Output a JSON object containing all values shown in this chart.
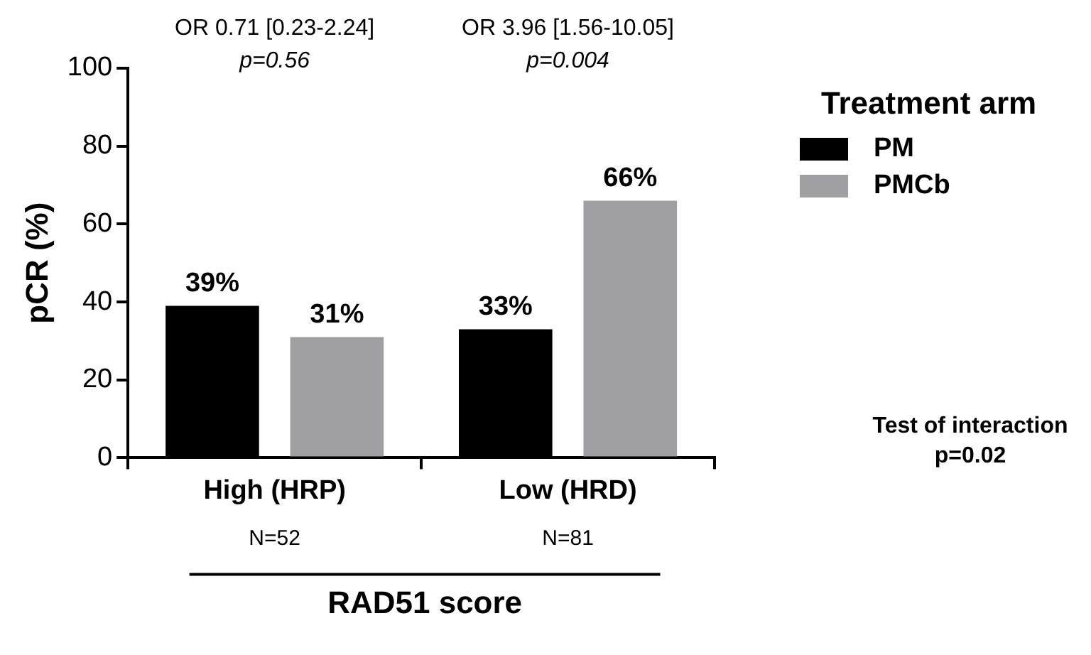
{
  "chart_data": {
    "type": "bar",
    "categories": [
      "High (HRP)",
      "Low (HRD)"
    ],
    "series": [
      {
        "name": "PM",
        "color": "#000000",
        "values": [
          39,
          33
        ],
        "value_labels": [
          "39%",
          "33%"
        ]
      },
      {
        "name": "PMCb",
        "color": "#a0a0a3",
        "values": [
          31,
          66
        ],
        "value_labels": [
          "31%",
          "66%"
        ]
      }
    ],
    "ylabel": "pCR (%)",
    "xlabel": "RAD51 score",
    "legend_title": "Treatment arm",
    "legend": "right",
    "ylim": [
      0,
      100
    ],
    "yticks": [
      0,
      20,
      40,
      60,
      80,
      100
    ],
    "grid": false,
    "annotations": [
      "OR 0.71 [0.23-2.24]",
      "p=0.56",
      "OR 3.96 [1.56-10.05]",
      "p=0.004",
      "N=52",
      "N=81",
      "Test of interaction",
      "p=0.02"
    ]
  }
}
